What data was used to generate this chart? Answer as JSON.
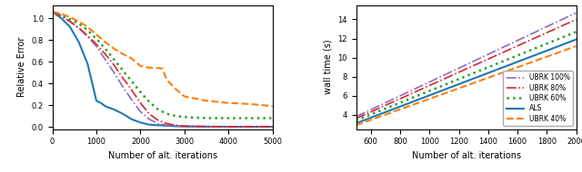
{
  "left": {
    "xlabel": "Number of alt. iterations",
    "ylabel": "Relative Error",
    "xlim": [
      0,
      5000
    ],
    "ylim": [
      -0.02,
      1.12
    ],
    "yticks": [
      0.0,
      0.2,
      0.4,
      0.6,
      0.8,
      1.0
    ],
    "xticks": [
      0,
      1000,
      2000,
      3000,
      4000,
      5000
    ],
    "lines": [
      {
        "label": "ALS",
        "color": "#1f77b4",
        "linestyle": "-",
        "linewidth": 1.5,
        "x": [
          0,
          200,
          400,
          600,
          800,
          1000,
          1100,
          1200,
          1400,
          1600,
          1800,
          2000,
          2100,
          2200,
          2400,
          2600,
          2800,
          3000,
          3500,
          4000,
          4500,
          5000
        ],
        "y": [
          1.06,
          1.0,
          0.92,
          0.78,
          0.58,
          0.24,
          0.22,
          0.19,
          0.16,
          0.12,
          0.07,
          0.04,
          0.03,
          0.02,
          0.015,
          0.01,
          0.006,
          0.004,
          0.002,
          0.001,
          0.001,
          0.001
        ]
      },
      {
        "label": "UBRK 100%",
        "color": "#9467bd",
        "linestyle": "-.",
        "linewidth": 1.2,
        "x": [
          0,
          200,
          400,
          600,
          800,
          1000,
          1200,
          1400,
          1600,
          1800,
          2000,
          2200,
          2400,
          2600,
          2800,
          3000,
          3500,
          4000,
          4500,
          5000
        ],
        "y": [
          1.06,
          1.02,
          0.97,
          0.91,
          0.83,
          0.74,
          0.62,
          0.5,
          0.37,
          0.25,
          0.14,
          0.07,
          0.03,
          0.015,
          0.007,
          0.004,
          0.002,
          0.001,
          0.001,
          0.001
        ]
      },
      {
        "label": "UBRK 80%",
        "color": "#d62728",
        "linestyle": "-.",
        "linewidth": 1.2,
        "x": [
          0,
          200,
          400,
          600,
          800,
          1000,
          1200,
          1400,
          1600,
          1800,
          2000,
          2200,
          2400,
          2600,
          2800,
          3000,
          3500,
          4000,
          4500,
          5000
        ],
        "y": [
          1.06,
          1.02,
          0.97,
          0.91,
          0.84,
          0.76,
          0.67,
          0.57,
          0.45,
          0.34,
          0.22,
          0.12,
          0.06,
          0.03,
          0.015,
          0.007,
          0.003,
          0.002,
          0.001,
          0.001
        ]
      },
      {
        "label": "UBRK 60%",
        "color": "#2ca02c",
        "linestyle": ":",
        "linewidth": 1.8,
        "x": [
          0,
          200,
          400,
          600,
          800,
          1000,
          1200,
          1400,
          1600,
          1800,
          2000,
          2200,
          2400,
          2600,
          2800,
          3000,
          3500,
          4000,
          4500,
          5000
        ],
        "y": [
          1.06,
          1.03,
          0.99,
          0.95,
          0.89,
          0.81,
          0.72,
          0.62,
          0.52,
          0.42,
          0.32,
          0.23,
          0.16,
          0.12,
          0.1,
          0.09,
          0.08,
          0.08,
          0.08,
          0.08
        ]
      },
      {
        "label": "UBRK 40%",
        "color": "#ff7f0e",
        "linestyle": "--",
        "linewidth": 1.5,
        "x": [
          0,
          200,
          400,
          600,
          800,
          1000,
          1200,
          1400,
          1600,
          1800,
          2000,
          2200,
          2400,
          2450,
          2500,
          2600,
          2800,
          3000,
          3500,
          4000,
          4500,
          5000
        ],
        "y": [
          1.06,
          1.04,
          1.01,
          0.97,
          0.92,
          0.85,
          0.78,
          0.72,
          0.67,
          0.63,
          0.56,
          0.545,
          0.54,
          0.54,
          0.535,
          0.43,
          0.35,
          0.28,
          0.24,
          0.22,
          0.21,
          0.19
        ]
      }
    ]
  },
  "right": {
    "xlabel": "Number of alt. iterations",
    "ylabel": "wall time (s)",
    "xlim": [
      500,
      2000
    ],
    "ylim": [
      2.5,
      15.5
    ],
    "yticks": [
      4,
      6,
      8,
      10,
      12,
      14
    ],
    "xticks": [
      600,
      800,
      1000,
      1200,
      1400,
      1600,
      1800,
      2000
    ],
    "lines": [
      {
        "label": "UBRK 100%",
        "color": "#9467bd",
        "linestyle": "-.",
        "linewidth": 1.2,
        "x": [
          500,
          2000
        ],
        "y": [
          3.8,
          14.7
        ]
      },
      {
        "label": "UBRK 80%",
        "color": "#d62728",
        "linestyle": "-.",
        "linewidth": 1.2,
        "x": [
          500,
          2000
        ],
        "y": [
          3.6,
          14.0
        ]
      },
      {
        "label": "UBRK 60%",
        "color": "#2ca02c",
        "linestyle": ":",
        "linewidth": 1.8,
        "x": [
          500,
          2000
        ],
        "y": [
          3.4,
          12.7
        ]
      },
      {
        "label": "ALS",
        "color": "#1f77b4",
        "linestyle": "-",
        "linewidth": 1.5,
        "x": [
          500,
          2000
        ],
        "y": [
          3.1,
          11.9
        ]
      },
      {
        "label": "UBRK 40%",
        "color": "#ff7f0e",
        "linestyle": "--",
        "linewidth": 1.5,
        "x": [
          500,
          2000
        ],
        "y": [
          2.9,
          11.2
        ]
      }
    ],
    "legend_order": [
      "UBRK 100%",
      "UBRK 80%",
      "UBRK 60%",
      "ALS",
      "UBRK 40%"
    ]
  }
}
